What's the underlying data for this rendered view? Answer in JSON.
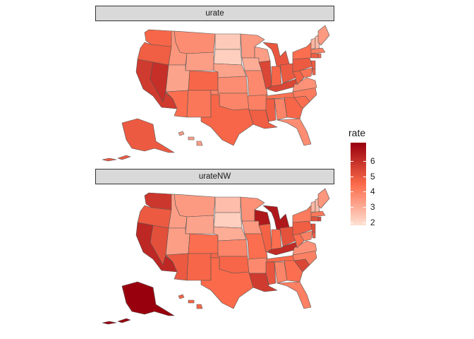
{
  "facets": [
    {
      "label": "urate",
      "regions": {
        "wa": 4.6,
        "or": 4.8,
        "ca": 5.7,
        "nv": 6.0,
        "id": 3.5,
        "mt": 3.7,
        "wy": 3.3,
        "ut": 3.2,
        "co": 4.6,
        "az": 4.4,
        "nm": 4.2,
        "nd": 2.3,
        "sd": 2.2,
        "ne": 3.2,
        "ks": 3.7,
        "ok": 3.9,
        "tx": 4.6,
        "mn": 3.4,
        "ia": 3.0,
        "mo": 3.8,
        "ar": 4.0,
        "la": 4.8,
        "wi": 3.3,
        "il": 5.4,
        "mi": 5.0,
        "in": 4.6,
        "oh": 4.9,
        "ky": 5.4,
        "tn": 4.3,
        "ms": 4.8,
        "al": 3.9,
        "ga": 4.6,
        "fl": 3.7,
        "sc": 4.4,
        "nc": 4.1,
        "va": 3.6,
        "wv": 4.7,
        "pa": 4.9,
        "ny": 4.4,
        "nj": 4.8,
        "md": 4.3,
        "de": 4.6,
        "vt": 2.8,
        "nh": 2.6,
        "me": 3.4,
        "ma": 4.0,
        "ct": 4.8,
        "ri": 4.6,
        "ak": 4.9,
        "hi": 3.3
      }
    },
    {
      "label": "urateNW",
      "regions": {
        "wa": 5.8,
        "or": 4.9,
        "ca": 6.2,
        "nv": 5.2,
        "id": 3.3,
        "mt": 3.4,
        "wy": 3.2,
        "ut": 3.3,
        "co": 4.4,
        "az": 4.9,
        "nm": 4.6,
        "nd": 2.6,
        "sd": 2.2,
        "ne": 3.0,
        "ks": 3.9,
        "ok": 4.6,
        "tx": 4.5,
        "mn": 3.6,
        "ia": 3.4,
        "mo": 4.4,
        "ar": 3.8,
        "la": 5.7,
        "wi": 6.6,
        "il": 4.7,
        "mi": 6.6,
        "in": 4.4,
        "oh": 5.1,
        "ky": 6.1,
        "tn": 4.5,
        "ms": 5.0,
        "al": 3.9,
        "ga": 4.4,
        "fl": 4.0,
        "sc": 5.4,
        "nc": 4.0,
        "va": 3.6,
        "wv": 4.4,
        "pa": 4.8,
        "ny": 4.1,
        "nj": 5.2,
        "md": 4.0,
        "de": 4.8,
        "vt": 2.7,
        "nh": 2.6,
        "me": 3.5,
        "ma": 4.2,
        "ct": 5.1,
        "ri": 5.4,
        "ak": 7.3,
        "hi": 4.6
      }
    }
  ],
  "legend": {
    "title": "rate",
    "ticks": [
      "2",
      "3",
      "4",
      "5",
      "6"
    ],
    "range": [
      1.8,
      7.2
    ],
    "low_color": "#fee0d2",
    "mid_color": "#fb6a4a",
    "high_color": "#99000d"
  }
}
